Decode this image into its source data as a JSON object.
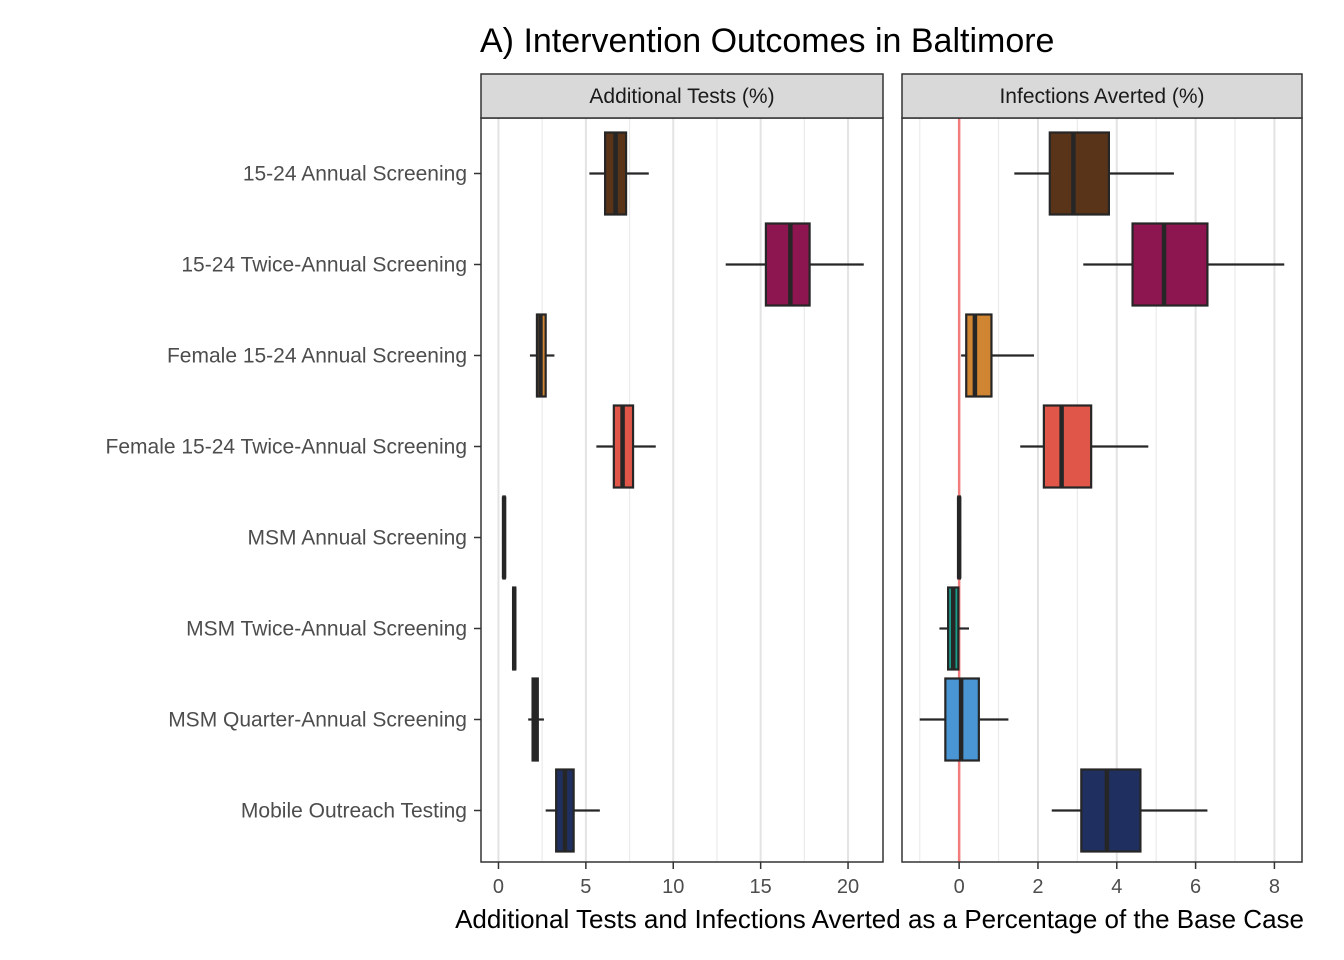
{
  "chart_data": {
    "type": "boxplot",
    "title": "A) Intervention Outcomes in Baltimore",
    "xlabel": "Additional Tests and Infections Averted as a Percentage of the Base Case",
    "categories": [
      "15-24 Annual Screening",
      "15-24 Twice-Annual Screening",
      "Female 15-24 Annual Screening",
      "Female 15-24 Twice-Annual Screening",
      "MSM Annual Screening",
      "MSM Twice-Annual Screening",
      "MSM Quarter-Annual Screening",
      "Mobile Outreach Testing"
    ],
    "colors": [
      "#5a3418",
      "#8e1650",
      "#cf8532",
      "#e0574a",
      "#1f8f8f",
      "#1a9e8a",
      "#4a96d4",
      "#1f3060"
    ],
    "reference_line": {
      "value": 0,
      "panel": 1,
      "color": "#f07c7c"
    },
    "panels": [
      {
        "strip": "Additional Tests (%)",
        "xlim": [
          -1,
          22
        ],
        "ticks": [
          0,
          5,
          10,
          15,
          20
        ],
        "tick_labels": [
          "0",
          "5",
          "10",
          "15",
          "20"
        ],
        "boxes": [
          {
            "whisker_low": 5.2,
            "q1": 6.1,
            "median": 6.7,
            "q3": 7.3,
            "whisker_high": 8.6
          },
          {
            "whisker_low": 13.0,
            "q1": 15.3,
            "median": 16.7,
            "q3": 17.8,
            "whisker_high": 20.9
          },
          {
            "whisker_low": 1.8,
            "q1": 2.2,
            "median": 2.4,
            "q3": 2.7,
            "whisker_high": 3.2
          },
          {
            "whisker_low": 5.6,
            "q1": 6.6,
            "median": 7.1,
            "q3": 7.7,
            "whisker_high": 9.0
          },
          {
            "whisker_low": 0.2,
            "q1": 0.28,
            "median": 0.32,
            "q3": 0.36,
            "whisker_high": 0.42
          },
          {
            "whisker_low": 0.78,
            "q1": 0.84,
            "median": 0.9,
            "q3": 0.96,
            "whisker_high": 1.02
          },
          {
            "whisker_low": 1.7,
            "q1": 1.95,
            "median": 2.1,
            "q3": 2.25,
            "whisker_high": 2.6
          },
          {
            "whisker_low": 2.7,
            "q1": 3.3,
            "median": 3.8,
            "q3": 4.3,
            "whisker_high": 5.8
          }
        ]
      },
      {
        "strip": "Infections Averted (%)",
        "xlim": [
          -1.45,
          8.7
        ],
        "ticks": [
          0,
          2,
          4,
          6,
          8
        ],
        "tick_labels": [
          "0",
          "2",
          "4",
          "6",
          "8"
        ],
        "boxes": [
          {
            "whisker_low": 1.4,
            "q1": 2.3,
            "median": 2.9,
            "q3": 3.8,
            "whisker_high": 5.45
          },
          {
            "whisker_low": 3.15,
            "q1": 4.4,
            "median": 5.2,
            "q3": 6.3,
            "whisker_high": 8.25
          },
          {
            "whisker_low": 0.05,
            "q1": 0.18,
            "median": 0.4,
            "q3": 0.82,
            "whisker_high": 1.9
          },
          {
            "whisker_low": 1.55,
            "q1": 2.15,
            "median": 2.6,
            "q3": 3.35,
            "whisker_high": 4.8
          },
          {
            "whisker_low": -0.05,
            "q1": -0.02,
            "median": 0.0,
            "q3": 0.02,
            "whisker_high": 0.05
          },
          {
            "whisker_low": -0.5,
            "q1": -0.28,
            "median": -0.15,
            "q3": -0.02,
            "whisker_high": 0.25
          },
          {
            "whisker_low": -1.0,
            "q1": -0.35,
            "median": 0.05,
            "q3": 0.5,
            "whisker_high": 1.25
          },
          {
            "whisker_low": 2.35,
            "q1": 3.1,
            "median": 3.75,
            "q3": 4.6,
            "whisker_high": 6.3
          }
        ]
      }
    ],
    "grid": true,
    "legend": "none"
  }
}
